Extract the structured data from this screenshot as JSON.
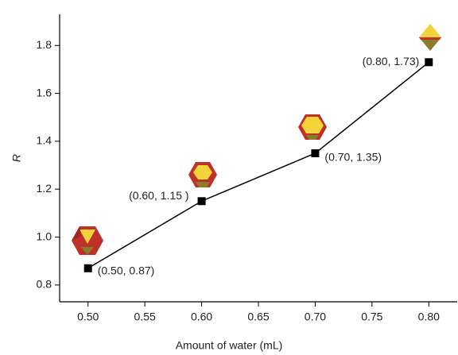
{
  "chart_data": {
    "type": "line",
    "x_label": "Amount of water (mL)",
    "y_label": "R",
    "x": [
      0.5,
      0.6,
      0.7,
      0.8
    ],
    "series": [
      {
        "color": "#000000",
        "values": [
          0.87,
          1.15,
          1.35,
          1.73
        ]
      }
    ],
    "annotations": [
      "(0.50, 0.87)",
      "(0.60, 1.15 )",
      "(0.70, 1.35)",
      "(0.80, 1.73)"
    ],
    "xlim": [
      0.475,
      0.825
    ],
    "xticks": [
      {
        "value": 0.5,
        "label": "0.50"
      },
      {
        "value": 0.55,
        "label": "0.55"
      },
      {
        "value": 0.6,
        "label": "0.60"
      },
      {
        "value": 0.65,
        "label": "0.65"
      },
      {
        "value": 0.7,
        "label": "0.70"
      },
      {
        "value": 0.75,
        "label": "0.75"
      },
      {
        "value": 0.8,
        "label": "0.80"
      }
    ],
    "ylim": [
      0.73,
      1.93
    ],
    "yticks": [
      0.8,
      {
        "value": 1,
        "label": "1.0"
      },
      1.2,
      1.4,
      1.6,
      1.8
    ]
  }
}
